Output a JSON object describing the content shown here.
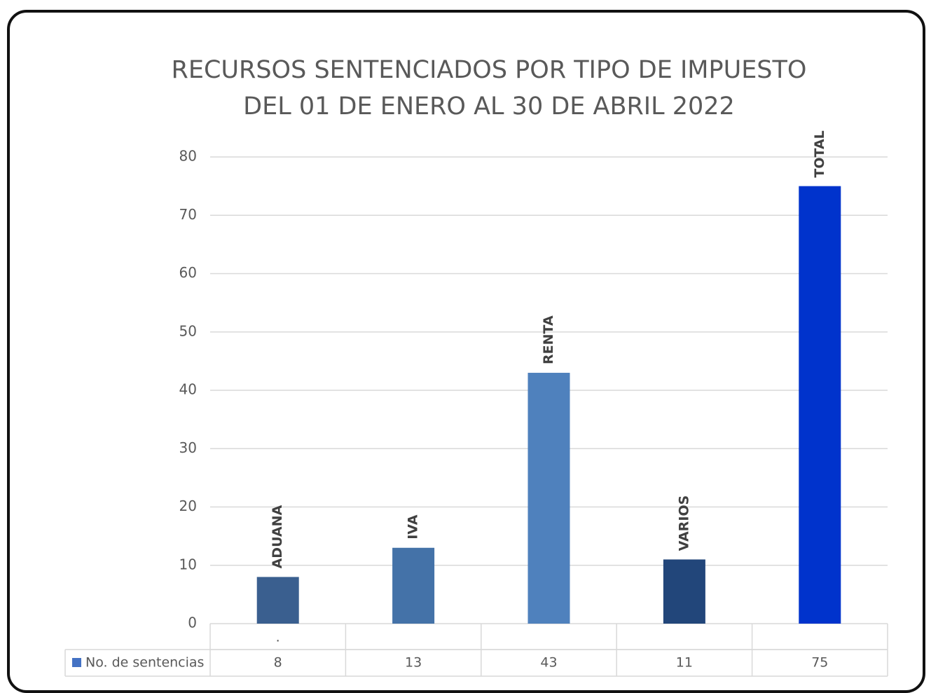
{
  "chart_data": {
    "type": "bar",
    "title": [
      "RECURSOS SENTENCIADOS POR TIPO DE IMPUESTO",
      "DEL 01 DE ENERO AL 30 DE ABRIL 2022"
    ],
    "categories": [
      ".",
      null,
      null,
      null,
      null
    ],
    "bar_labels": [
      "ADUANA",
      "IVA",
      "RENTA",
      "VARIOS",
      "TOTAL"
    ],
    "series": [
      {
        "name": "No. de sentencias",
        "color": "#4472c4",
        "values": [
          8,
          13,
          43,
          11,
          75
        ]
      }
    ],
    "bar_colors": [
      "#3a5f8f",
      "#4472a8",
      "#4f81bd",
      "#22467a",
      "#0033cc"
    ],
    "ylim": [
      0,
      80
    ],
    "yticks": [
      0,
      10,
      20,
      30,
      40,
      50,
      60,
      70,
      80
    ],
    "grid": true
  }
}
